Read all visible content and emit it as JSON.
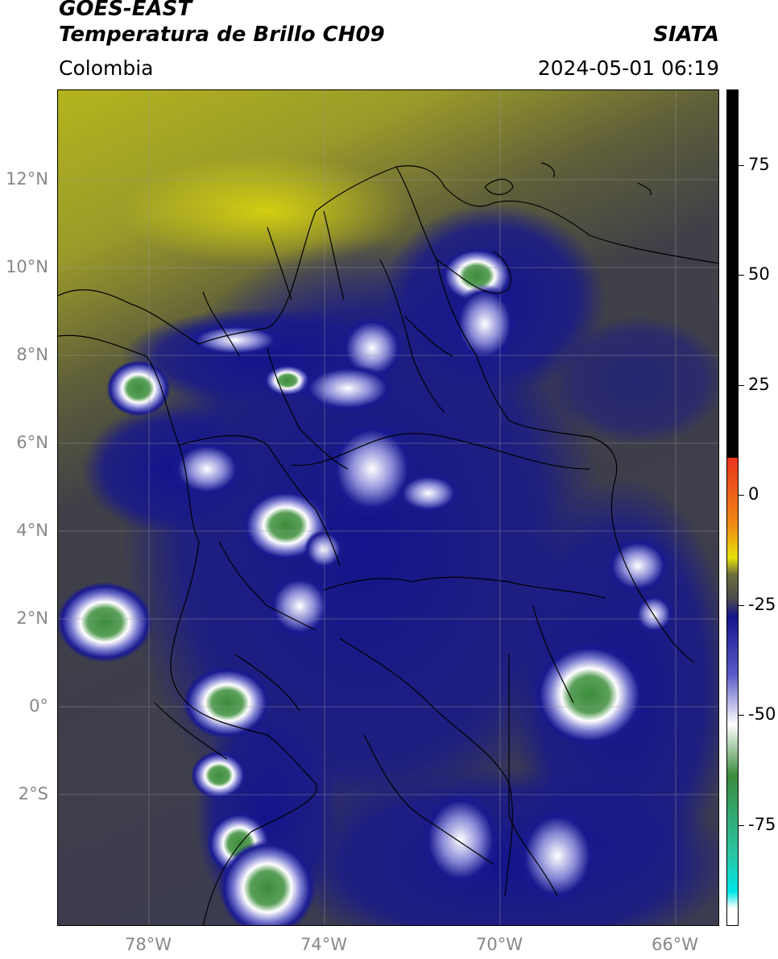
{
  "header": {
    "satellite": "GOES-EAST",
    "product": "Temperatura de Brillo CH09",
    "agency": "SIATA",
    "region": "Colombia",
    "datetime": "2024-05-01 06:19"
  },
  "map": {
    "lat_labels": [
      "12°N",
      "10°N",
      "8°N",
      "6°N",
      "4°N",
      "2°N",
      "0°",
      "2°S"
    ],
    "lon_labels": [
      "78°W",
      "74°W",
      "70°W",
      "66°W"
    ],
    "lat_values": [
      12,
      10,
      8,
      6,
      4,
      2,
      0,
      -2
    ],
    "lon_values": [
      -78,
      -74,
      -70,
      -66
    ],
    "extent": {
      "lon_min": -80,
      "lon_max": -65,
      "lat_min": -5,
      "lat_max": 14
    },
    "gridlines": true,
    "features": [
      "coastlines",
      "country borders",
      "department borders"
    ]
  },
  "colorbar": {
    "tick_labels": [
      "75",
      "50",
      "25",
      "0",
      "-25",
      "-50",
      "-75"
    ],
    "tick_values": [
      75,
      50,
      25,
      0,
      -25,
      -50,
      -75
    ],
    "range": [
      -95,
      90
    ],
    "colors": {
      "warm": "#000000",
      "red": "#e8321e",
      "orange": "#f08a14",
      "yellow": "#e6e10a",
      "olive": "#6e6e3c",
      "gray": "#4a4a50",
      "navy": "#14148c",
      "blue": "#5a5ac8",
      "white": "#ffffff",
      "green": "#3c8c3c",
      "teal": "#28c8aa",
      "cyan": "#00e6e6"
    }
  }
}
